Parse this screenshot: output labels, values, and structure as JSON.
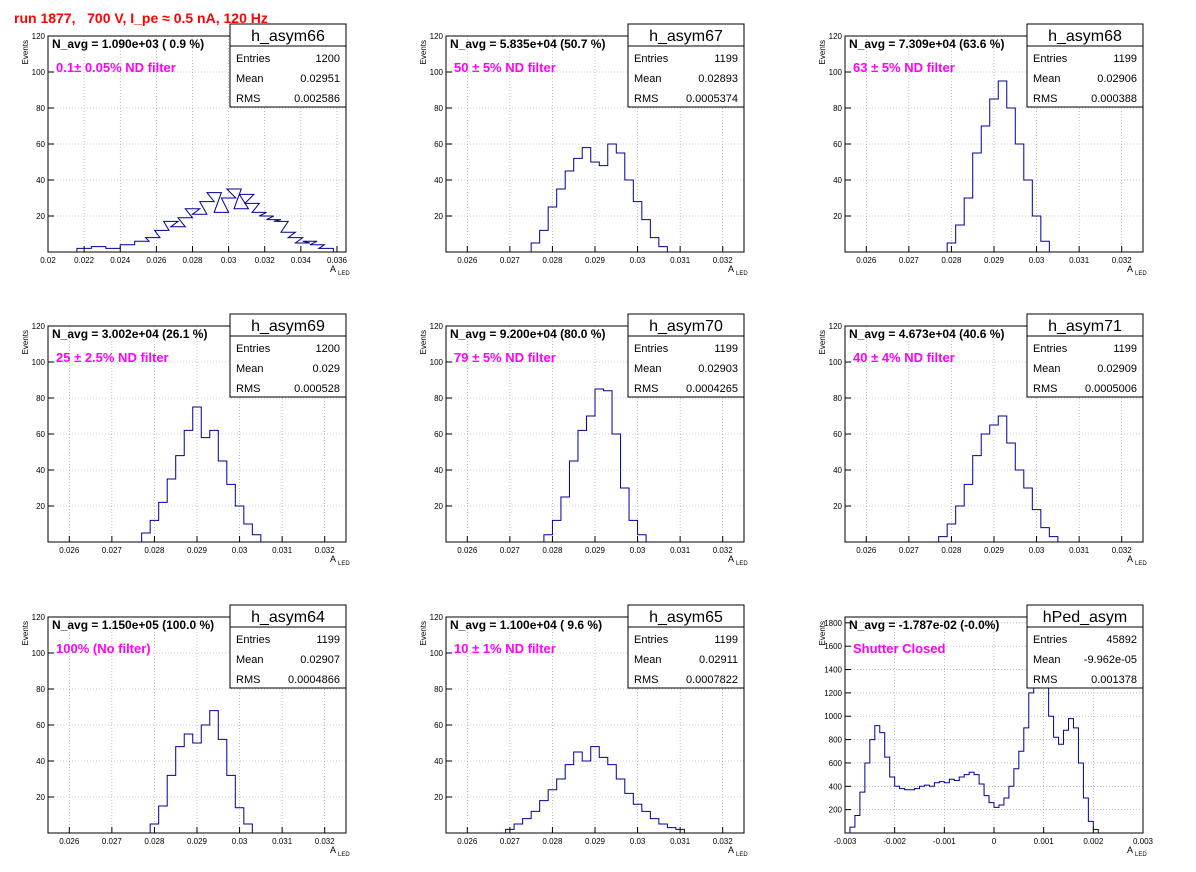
{
  "page_title": "run 1877,   700 V, I_pe ≈ 0.5 nA, 120 Hz",
  "colors": {
    "histogram_line": "#000099",
    "filter_label": "#ff00ff",
    "title": "#ff0000",
    "grid": "#999999"
  },
  "common": {
    "x_axis_label": "A",
    "x_axis_subscript": "LED",
    "y_axis_label": "Events",
    "stat_labels": [
      "Entries",
      "Mean",
      "RMS"
    ]
  },
  "chart_data": [
    {
      "type": "histogram",
      "name": "h_asym66",
      "navg": "N_avg = 1.090e+03 ( 0.9 %)",
      "filter": "0.1± 0.05% ND filter",
      "stats": {
        "entries": "1200",
        "mean": "0.02951",
        "rms": "0.002586"
      },
      "xlim": [
        0.02,
        0.0365
      ],
      "ylim": [
        0,
        120
      ],
      "xticks": [
        "0.02",
        "0.022",
        "0.024",
        "0.026",
        "0.028",
        "0.03",
        "0.032",
        "0.034",
        "0.036"
      ],
      "yticks": [
        "20",
        "40",
        "60",
        "80",
        "100",
        "120"
      ],
      "bins": [
        [
          0.022,
          2
        ],
        [
          0.0228,
          3
        ],
        [
          0.0236,
          2
        ],
        [
          0.0244,
          4
        ],
        [
          0.0252,
          6
        ],
        [
          0.0258,
          8
        ],
        [
          0.0263,
          12
        ],
        [
          0.0268,
          17
        ],
        [
          0.0272,
          14
        ],
        [
          0.0276,
          19
        ],
        [
          0.028,
          24
        ],
        [
          0.0284,
          21
        ],
        [
          0.0288,
          28
        ],
        [
          0.0292,
          33
        ],
        [
          0.0296,
          22
        ],
        [
          0.03,
          30
        ],
        [
          0.0303,
          35
        ],
        [
          0.0307,
          24
        ],
        [
          0.031,
          32
        ],
        [
          0.0313,
          27
        ],
        [
          0.0317,
          22
        ],
        [
          0.0321,
          20
        ],
        [
          0.0325,
          18
        ],
        [
          0.0329,
          17
        ],
        [
          0.0333,
          11
        ],
        [
          0.0337,
          8
        ],
        [
          0.0341,
          5
        ],
        [
          0.0345,
          6
        ],
        [
          0.0349,
          4
        ],
        [
          0.0354,
          2
        ]
      ]
    },
    {
      "type": "histogram",
      "name": "h_asym67",
      "navg": "N_avg = 5.835e+04 (50.7 %)",
      "filter": "50 ± 5% ND filter",
      "stats": {
        "entries": "1199",
        "mean": "0.02893",
        "rms": "0.0005374"
      },
      "xlim": [
        0.0255,
        0.0325
      ],
      "ylim": [
        0,
        120
      ],
      "xticks": [
        "0.026",
        "0.027",
        "0.028",
        "0.029",
        "0.03",
        "0.031",
        "0.032"
      ],
      "yticks": [
        "20",
        "40",
        "60",
        "80",
        "100",
        "120"
      ],
      "bins": [
        [
          0.0276,
          5
        ],
        [
          0.0278,
          12
        ],
        [
          0.028,
          25
        ],
        [
          0.0282,
          35
        ],
        [
          0.0284,
          45
        ],
        [
          0.0286,
          52
        ],
        [
          0.0288,
          58
        ],
        [
          0.029,
          50
        ],
        [
          0.0292,
          48
        ],
        [
          0.0294,
          60
        ],
        [
          0.0296,
          55
        ],
        [
          0.0298,
          40
        ],
        [
          0.03,
          28
        ],
        [
          0.0302,
          18
        ],
        [
          0.0304,
          8
        ],
        [
          0.0306,
          3
        ]
      ]
    },
    {
      "type": "histogram",
      "name": "h_asym68",
      "navg": "N_avg = 7.309e+04 (63.6 %)",
      "filter": "63 ± 5% ND filter",
      "stats": {
        "entries": "1199",
        "mean": "0.02906",
        "rms": "0.000388"
      },
      "xlim": [
        0.0255,
        0.0325
      ],
      "ylim": [
        0,
        120
      ],
      "xticks": [
        "0.026",
        "0.027",
        "0.028",
        "0.029",
        "0.03",
        "0.031",
        "0.032"
      ],
      "yticks": [
        "20",
        "40",
        "60",
        "80",
        "100",
        "120"
      ],
      "bins": [
        [
          0.028,
          5
        ],
        [
          0.0282,
          15
        ],
        [
          0.0284,
          30
        ],
        [
          0.0286,
          55
        ],
        [
          0.0288,
          70
        ],
        [
          0.029,
          85
        ],
        [
          0.0292,
          95
        ],
        [
          0.0294,
          80
        ],
        [
          0.0296,
          60
        ],
        [
          0.0298,
          40
        ],
        [
          0.03,
          20
        ],
        [
          0.0302,
          6
        ]
      ]
    },
    {
      "type": "histogram",
      "name": "h_asym69",
      "navg": "N_avg = 3.002e+04 (26.1 %)",
      "filter": "25 ± 2.5% ND filter",
      "stats": {
        "entries": "1200",
        "mean": "0.029",
        "rms": "0.000528"
      },
      "xlim": [
        0.0255,
        0.0325
      ],
      "ylim": [
        0,
        120
      ],
      "xticks": [
        "0.026",
        "0.027",
        "0.028",
        "0.029",
        "0.03",
        "0.031",
        "0.032"
      ],
      "yticks": [
        "20",
        "40",
        "60",
        "80",
        "100",
        "120"
      ],
      "bins": [
        [
          0.0278,
          5
        ],
        [
          0.028,
          12
        ],
        [
          0.0282,
          22
        ],
        [
          0.0284,
          35
        ],
        [
          0.0286,
          48
        ],
        [
          0.0288,
          62
        ],
        [
          0.029,
          75
        ],
        [
          0.0292,
          58
        ],
        [
          0.0294,
          62
        ],
        [
          0.0296,
          45
        ],
        [
          0.0298,
          32
        ],
        [
          0.03,
          20
        ],
        [
          0.0302,
          10
        ],
        [
          0.0304,
          4
        ]
      ]
    },
    {
      "type": "histogram",
      "name": "h_asym70",
      "navg": "N_avg = 9.200e+04 (80.0 %)",
      "filter": "79 ± 5% ND filter",
      "stats": {
        "entries": "1199",
        "mean": "0.02903",
        "rms": "0.0004265"
      },
      "xlim": [
        0.0255,
        0.0325
      ],
      "ylim": [
        0,
        120
      ],
      "xticks": [
        "0.026",
        "0.027",
        "0.028",
        "0.029",
        "0.03",
        "0.031",
        "0.032"
      ],
      "yticks": [
        "20",
        "40",
        "60",
        "80",
        "100",
        "120"
      ],
      "bins": [
        [
          0.0279,
          4
        ],
        [
          0.0281,
          12
        ],
        [
          0.0283,
          25
        ],
        [
          0.0285,
          45
        ],
        [
          0.0287,
          62
        ],
        [
          0.0289,
          70
        ],
        [
          0.0291,
          85
        ],
        [
          0.0293,
          84
        ],
        [
          0.0295,
          60
        ],
        [
          0.0297,
          30
        ],
        [
          0.0299,
          12
        ],
        [
          0.0301,
          4
        ]
      ]
    },
    {
      "type": "histogram",
      "name": "h_asym71",
      "navg": "N_avg = 4.673e+04 (40.6 %)",
      "filter": "40 ± 4% ND filter",
      "stats": {
        "entries": "1199",
        "mean": "0.02909",
        "rms": "0.0005006"
      },
      "xlim": [
        0.0255,
        0.0325
      ],
      "ylim": [
        0,
        120
      ],
      "xticks": [
        "0.026",
        "0.027",
        "0.028",
        "0.029",
        "0.03",
        "0.031",
        "0.032"
      ],
      "yticks": [
        "20",
        "40",
        "60",
        "80",
        "100",
        "120"
      ],
      "bins": [
        [
          0.0278,
          3
        ],
        [
          0.028,
          10
        ],
        [
          0.0282,
          20
        ],
        [
          0.0284,
          32
        ],
        [
          0.0286,
          48
        ],
        [
          0.0288,
          60
        ],
        [
          0.029,
          65
        ],
        [
          0.0292,
          70
        ],
        [
          0.0294,
          55
        ],
        [
          0.0296,
          40
        ],
        [
          0.0298,
          30
        ],
        [
          0.03,
          18
        ],
        [
          0.0302,
          8
        ],
        [
          0.0304,
          3
        ]
      ]
    },
    {
      "type": "histogram",
      "name": "h_asym64",
      "navg": "N_avg = 1.150e+05 (100.0 %)",
      "filter": "100% (No filter)",
      "stats": {
        "entries": "1199",
        "mean": "0.02907",
        "rms": "0.0004866"
      },
      "xlim": [
        0.0255,
        0.0325
      ],
      "ylim": [
        0,
        120
      ],
      "xticks": [
        "0.026",
        "0.027",
        "0.028",
        "0.029",
        "0.03",
        "0.031",
        "0.032"
      ],
      "yticks": [
        "20",
        "40",
        "60",
        "80",
        "100",
        "120"
      ],
      "bins": [
        [
          0.028,
          5
        ],
        [
          0.0282,
          15
        ],
        [
          0.0284,
          32
        ],
        [
          0.0286,
          48
        ],
        [
          0.0288,
          55
        ],
        [
          0.029,
          50
        ],
        [
          0.0292,
          60
        ],
        [
          0.0294,
          68
        ],
        [
          0.0296,
          52
        ],
        [
          0.0298,
          32
        ],
        [
          0.03,
          14
        ],
        [
          0.0302,
          5
        ]
      ]
    },
    {
      "type": "histogram",
      "name": "h_asym65",
      "navg": "N_avg = 1.100e+04 ( 9.6 %)",
      "filter": "10 ± 1% ND filter",
      "stats": {
        "entries": "1199",
        "mean": "0.02911",
        "rms": "0.0007822"
      },
      "xlim": [
        0.0255,
        0.0325
      ],
      "ylim": [
        0,
        120
      ],
      "xticks": [
        "0.026",
        "0.027",
        "0.028",
        "0.029",
        "0.03",
        "0.031",
        "0.032"
      ],
      "yticks": [
        "20",
        "40",
        "60",
        "80",
        "100",
        "120"
      ],
      "bins": [
        [
          0.027,
          2
        ],
        [
          0.0272,
          5
        ],
        [
          0.0274,
          8
        ],
        [
          0.0276,
          12
        ],
        [
          0.0278,
          18
        ],
        [
          0.028,
          24
        ],
        [
          0.0282,
          30
        ],
        [
          0.0284,
          38
        ],
        [
          0.0286,
          45
        ],
        [
          0.0288,
          40
        ],
        [
          0.029,
          48
        ],
        [
          0.0292,
          42
        ],
        [
          0.0294,
          38
        ],
        [
          0.0296,
          30
        ],
        [
          0.0298,
          22
        ],
        [
          0.03,
          16
        ],
        [
          0.0302,
          12
        ],
        [
          0.0304,
          8
        ],
        [
          0.0306,
          5
        ],
        [
          0.0308,
          3
        ],
        [
          0.031,
          2
        ]
      ]
    },
    {
      "type": "histogram",
      "name": "hPed_asym",
      "navg": "N_avg = -1.787e-02 (-0.0%)",
      "filter": "Shutter Closed",
      "stats": {
        "entries": "45892",
        "mean": "-9.962e-05",
        "rms": "0.001378"
      },
      "xlim": [
        -0.003,
        0.003
      ],
      "ylim": [
        0,
        1850
      ],
      "xticks": [
        "-0.003",
        "-0.002",
        "-0.001",
        "0",
        "0.001",
        "0.002",
        "0.003"
      ],
      "yticks": [
        "200",
        "400",
        "600",
        "800",
        "1000",
        "1200",
        "1400",
        "1600",
        "1800"
      ],
      "bins": [
        [
          -0.00285,
          50
        ],
        [
          -0.00275,
          150
        ],
        [
          -0.00265,
          350
        ],
        [
          -0.00255,
          600
        ],
        [
          -0.00245,
          800
        ],
        [
          -0.00235,
          920
        ],
        [
          -0.00225,
          860
        ],
        [
          -0.00215,
          650
        ],
        [
          -0.00205,
          480
        ],
        [
          -0.00195,
          400
        ],
        [
          -0.00185,
          380
        ],
        [
          -0.00175,
          370
        ],
        [
          -0.00165,
          370
        ],
        [
          -0.00155,
          380
        ],
        [
          -0.00145,
          400
        ],
        [
          -0.00135,
          410
        ],
        [
          -0.00125,
          400
        ],
        [
          -0.00115,
          430
        ],
        [
          -0.00105,
          440
        ],
        [
          -0.00095,
          430
        ],
        [
          -0.00085,
          460
        ],
        [
          -0.00075,
          450
        ],
        [
          -0.00065,
          480
        ],
        [
          -0.00055,
          500
        ],
        [
          -0.00045,
          520
        ],
        [
          -0.00035,
          500
        ],
        [
          -0.00025,
          420
        ],
        [
          -0.00015,
          320
        ],
        [
          -5e-05,
          260
        ],
        [
          5e-05,
          220
        ],
        [
          0.00015,
          240
        ],
        [
          0.00025,
          300
        ],
        [
          0.00035,
          400
        ],
        [
          0.00045,
          550
        ],
        [
          0.00055,
          700
        ],
        [
          0.00065,
          900
        ],
        [
          0.00075,
          1200
        ],
        [
          0.00085,
          1550
        ],
        [
          0.00095,
          1780
        ],
        [
          0.00105,
          1500
        ],
        [
          0.00115,
          1000
        ],
        [
          0.00125,
          820
        ],
        [
          0.00135,
          760
        ],
        [
          0.00145,
          880
        ],
        [
          0.00155,
          980
        ],
        [
          0.00165,
          900
        ],
        [
          0.00175,
          600
        ],
        [
          0.00185,
          300
        ],
        [
          0.00195,
          100
        ],
        [
          0.00205,
          30
        ]
      ]
    }
  ]
}
